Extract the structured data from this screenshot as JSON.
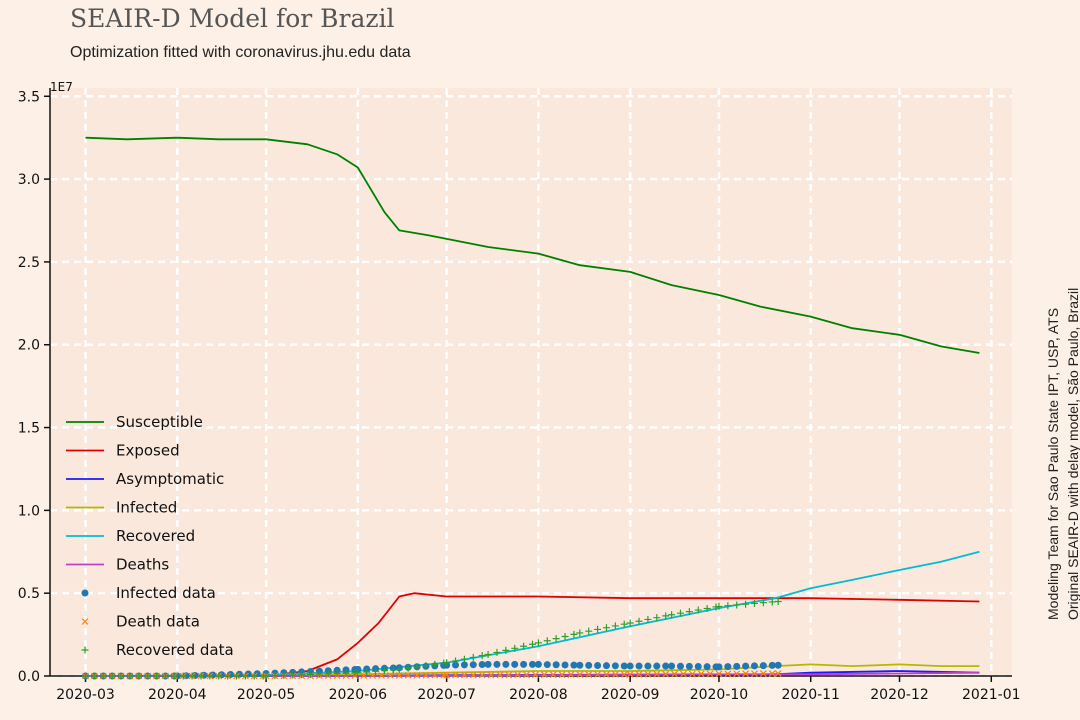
{
  "chart_data": {
    "type": "line",
    "title": "SEAIR-D Model for Brazil",
    "subtitle": "Optimization fitted with coronavirus.jhu.edu data",
    "side_note": [
      "Modeling Team for Sao Paulo State IPT, USP, ATS",
      "Original SEAIR-D with delay model, São Paulo, Brazil"
    ],
    "y_scale_label": "1E7",
    "xlim": [
      "2020-02-18",
      "2021-01-08"
    ],
    "ylim": [
      0,
      3.55
    ],
    "x_ticks": [
      "2020-03-01",
      "2020-04-01",
      "2020-05-01",
      "2020-06-01",
      "2020-07-01",
      "2020-08-01",
      "2020-09-01",
      "2020-10-01",
      "2020-11-01",
      "2020-12-01",
      "2021-01-01"
    ],
    "x_tick_labels": [
      "2020-03",
      "2020-04",
      "2020-05",
      "2020-06",
      "2020-07",
      "2020-08",
      "2020-09",
      "2020-10",
      "2020-11",
      "2020-12",
      "2021-01"
    ],
    "y_ticks": [
      0,
      0.5,
      1.0,
      1.5,
      2.0,
      2.5,
      3.0,
      3.5
    ],
    "y_tick_labels": [
      "0.0",
      "0.5",
      "1.0",
      "1.5",
      "2.0",
      "2.5",
      "3.0",
      "3.5"
    ],
    "grid": true,
    "legend_position": "lower-left",
    "series": [
      {
        "name": "Susceptible",
        "kind": "line",
        "color": "#008000",
        "x": [
          "2020-03-01",
          "2020-03-15",
          "2020-04-01",
          "2020-04-15",
          "2020-05-01",
          "2020-05-15",
          "2020-05-25",
          "2020-06-01",
          "2020-06-05",
          "2020-06-10",
          "2020-06-15",
          "2020-06-25",
          "2020-07-15",
          "2020-08-01",
          "2020-08-15",
          "2020-09-01",
          "2020-09-15",
          "2020-10-01",
          "2020-10-15",
          "2020-11-01",
          "2020-11-15",
          "2020-12-01",
          "2020-12-15",
          "2020-12-28"
        ],
        "y": [
          3.25,
          3.24,
          3.25,
          3.24,
          3.24,
          3.21,
          3.15,
          3.07,
          2.95,
          2.8,
          2.69,
          2.66,
          2.59,
          2.55,
          2.48,
          2.44,
          2.36,
          2.3,
          2.23,
          2.17,
          2.1,
          2.06,
          1.99,
          1.95
        ]
      },
      {
        "name": "Exposed",
        "kind": "line",
        "color": "#e00000",
        "x": [
          "2020-03-01",
          "2020-04-01",
          "2020-05-01",
          "2020-05-15",
          "2020-05-25",
          "2020-06-01",
          "2020-06-08",
          "2020-06-15",
          "2020-06-20",
          "2020-07-01",
          "2020-08-01",
          "2020-09-01",
          "2020-10-01",
          "2020-10-20",
          "2020-11-01",
          "2020-12-01",
          "2020-12-28"
        ],
        "y": [
          0.0,
          0.0,
          0.0,
          0.03,
          0.1,
          0.2,
          0.32,
          0.48,
          0.5,
          0.48,
          0.48,
          0.47,
          0.47,
          0.47,
          0.47,
          0.46,
          0.45
        ]
      },
      {
        "name": "Asymptomatic",
        "kind": "line",
        "color": "#1a1aff",
        "x": [
          "2020-03-01",
          "2020-06-01",
          "2020-07-01",
          "2020-10-20",
          "2020-11-01",
          "2020-12-01",
          "2020-12-28"
        ],
        "y": [
          0.0,
          0.0,
          0.005,
          0.01,
          0.02,
          0.03,
          0.02
        ]
      },
      {
        "name": "Infected",
        "kind": "line",
        "color": "#b5b800",
        "x": [
          "2020-03-01",
          "2020-06-01",
          "2020-07-01",
          "2020-08-01",
          "2020-09-01",
          "2020-10-01",
          "2020-10-20",
          "2020-11-01",
          "2020-11-15",
          "2020-12-01",
          "2020-12-15",
          "2020-12-28"
        ],
        "y": [
          0.0,
          0.01,
          0.02,
          0.03,
          0.03,
          0.04,
          0.06,
          0.07,
          0.06,
          0.07,
          0.06,
          0.06
        ]
      },
      {
        "name": "Recovered",
        "kind": "line",
        "color": "#00bcd4",
        "x": [
          "2020-03-01",
          "2020-05-01",
          "2020-06-01",
          "2020-07-01",
          "2020-08-01",
          "2020-09-01",
          "2020-10-01",
          "2020-10-20",
          "2020-11-01",
          "2020-11-15",
          "2020-12-01",
          "2020-12-15",
          "2020-12-28"
        ],
        "y": [
          0.0,
          0.005,
          0.03,
          0.08,
          0.18,
          0.3,
          0.41,
          0.47,
          0.53,
          0.58,
          0.64,
          0.69,
          0.75
        ]
      },
      {
        "name": "Deaths",
        "kind": "line",
        "color": "#c040c8",
        "x": [
          "2020-03-01",
          "2020-06-01",
          "2020-08-01",
          "2020-10-20",
          "2020-11-01",
          "2020-12-01",
          "2020-12-28"
        ],
        "y": [
          0.0,
          0.0,
          0.005,
          0.01,
          0.01,
          0.015,
          0.02
        ]
      },
      {
        "name": "Infected data",
        "kind": "scatter",
        "marker": "circle",
        "color": "#1f77b4",
        "x": [
          "2020-03-01",
          "2020-04-01",
          "2020-05-01",
          "2020-06-01",
          "2020-06-15",
          "2020-07-01",
          "2020-07-15",
          "2020-08-01",
          "2020-08-15",
          "2020-09-01",
          "2020-09-15",
          "2020-10-01",
          "2020-10-21"
        ],
        "y": [
          0.0,
          0.0,
          0.015,
          0.04,
          0.05,
          0.065,
          0.07,
          0.07,
          0.065,
          0.06,
          0.06,
          0.055,
          0.065
        ]
      },
      {
        "name": "Death data",
        "kind": "scatter",
        "marker": "x",
        "color": "#ff7f0e",
        "x": [
          "2020-03-01",
          "2020-05-01",
          "2020-07-01",
          "2020-09-01",
          "2020-10-21"
        ],
        "y": [
          0.0,
          0.0,
          0.005,
          0.01,
          0.015
        ]
      },
      {
        "name": "Recovered data",
        "kind": "scatter",
        "marker": "plus",
        "color": "#2ca02c",
        "x": [
          "2020-03-01",
          "2020-05-01",
          "2020-06-01",
          "2020-06-15",
          "2020-07-01",
          "2020-07-15",
          "2020-08-01",
          "2020-08-15",
          "2020-09-01",
          "2020-09-15",
          "2020-10-01",
          "2020-10-21"
        ],
        "y": [
          0.0,
          0.0,
          0.02,
          0.04,
          0.08,
          0.13,
          0.2,
          0.26,
          0.32,
          0.37,
          0.42,
          0.45
        ]
      }
    ]
  }
}
